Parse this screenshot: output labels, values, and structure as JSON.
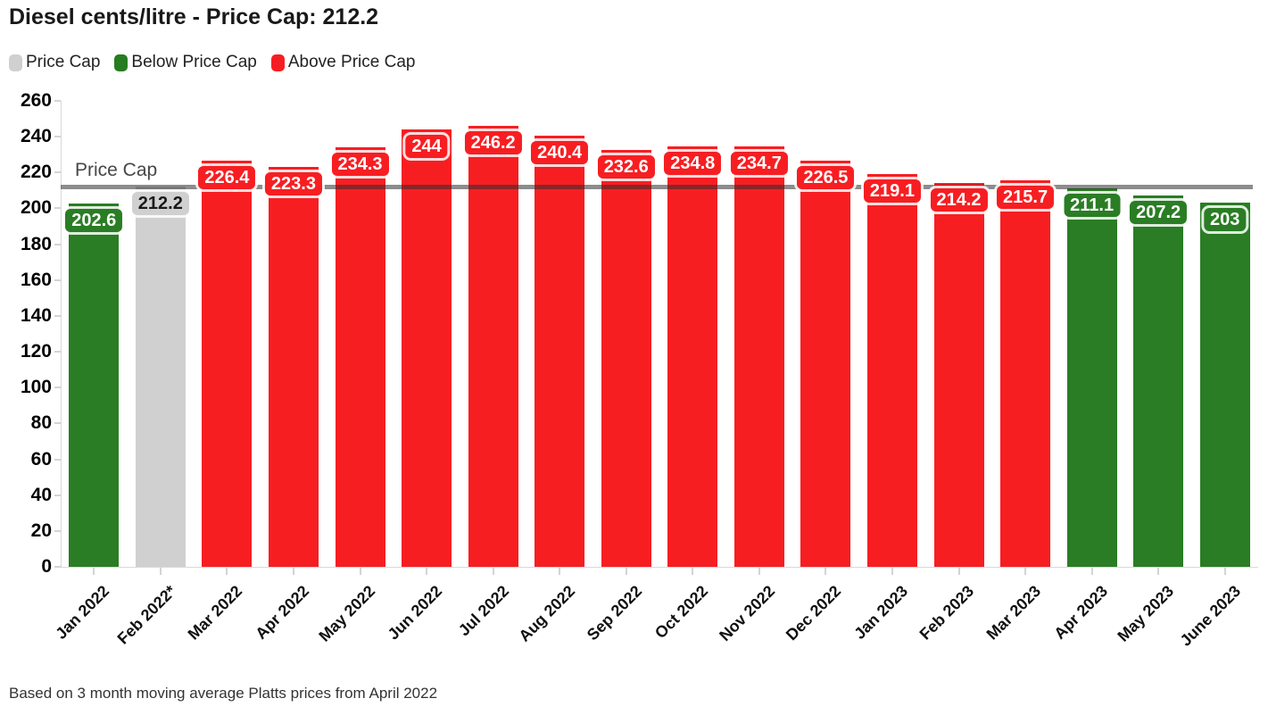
{
  "page": {
    "background": "#ffffff"
  },
  "header": {
    "title": "Diesel cents/litre - Price Cap: 212.2"
  },
  "legend": {
    "items": [
      {
        "label": "Price Cap",
        "color": "#d0d0d0"
      },
      {
        "label": "Below Price Cap",
        "color": "#267c20"
      },
      {
        "label": "Above Price Cap",
        "color": "#f71e22"
      }
    ]
  },
  "chart_data": {
    "type": "bar",
    "title": "Diesel cents/litre - Price Cap: 212.2",
    "categories": [
      "Jan 2022",
      "Feb 2022*",
      "Mar 2022",
      "Apr 2022",
      "May 2022",
      "Jun 2022",
      "Jul 2022",
      "Aug 2022",
      "Sep 2022",
      "Oct 2022",
      "Nov 2022",
      "Dec 2022",
      "Jan 2023",
      "Feb 2023",
      "Mar 2023",
      "Apr 2023",
      "May 2023",
      "June 2023"
    ],
    "values": [
      202.6,
      212.2,
      226.4,
      223.3,
      234.3,
      244,
      246.2,
      240.4,
      232.6,
      234.8,
      234.7,
      226.5,
      219.1,
      214.2,
      215.7,
      211.1,
      207.2,
      203
    ],
    "value_labels": [
      "202.6",
      "212.2",
      "226.4",
      "223.3",
      "234.3",
      "244",
      "246.2",
      "240.4",
      "232.6",
      "234.8",
      "234.7",
      "226.5",
      "219.1",
      "214.2",
      "215.7",
      "211.1",
      "207.2",
      "203"
    ],
    "bar_roles": [
      "below",
      "cap",
      "above",
      "above",
      "above",
      "above",
      "above",
      "above",
      "above",
      "above",
      "above",
      "above",
      "above",
      "above",
      "above",
      "below",
      "below",
      "below"
    ],
    "colors": {
      "below": "#2a7d24",
      "above": "#f71e22",
      "cap": "#d0d0d0"
    },
    "label_text_colors": {
      "below": "#ffffff",
      "above": "#ffffff",
      "cap": "#1a1a1a"
    },
    "price_cap": {
      "value": 212.2,
      "label": "Price Cap",
      "line_color": "#8c8c8c"
    },
    "xlabel": "",
    "ylabel": "",
    "ylim": [
      0,
      260
    ],
    "yticks": [
      0,
      20,
      40,
      60,
      80,
      100,
      120,
      140,
      160,
      180,
      200,
      220,
      240,
      260
    ],
    "grid": false,
    "legend_position": "top-left"
  },
  "footnote": {
    "text": "Based on 3 month moving average Platts prices from April 2022"
  }
}
